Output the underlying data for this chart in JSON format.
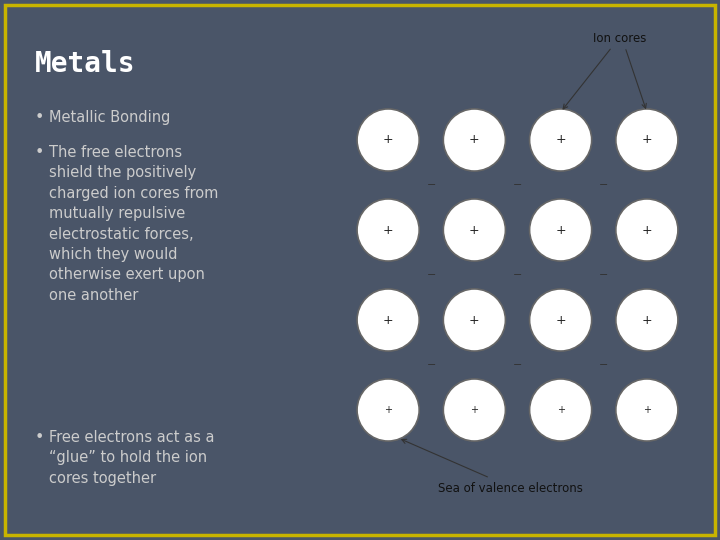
{
  "bg_color": "#4a5568",
  "border_color": "#c8b400",
  "title": "Metals",
  "title_color": "#ffffff",
  "title_fontsize": 20,
  "bullet_color": "#cccccc",
  "bullet_fontsize": 10.5,
  "bullets": [
    "Metallic Bonding",
    "The free electrons\nshield the positively\ncharged ion cores from\nmutually repulsive\nelectrostatic forces,\nwhich they would\notherwise exert upon\none another",
    "Free electrons act as a\n“glue” to hold the ion\ncores together"
  ],
  "diagram_bg": "#cce5f0",
  "diagram_border": "#333333",
  "diagram_outer_bg": "#ffffff",
  "circle_facecolor": "#ffffff",
  "circle_edgecolor": "#666666",
  "grid_rows": 4,
  "grid_cols": 4,
  "plus_color": "#222222",
  "minus_color": "#333333",
  "label_ion_cores": "Ion cores",
  "label_sea": "Sea of valence electrons",
  "label_fontsize": 8.5,
  "annotation_color": "#333333"
}
